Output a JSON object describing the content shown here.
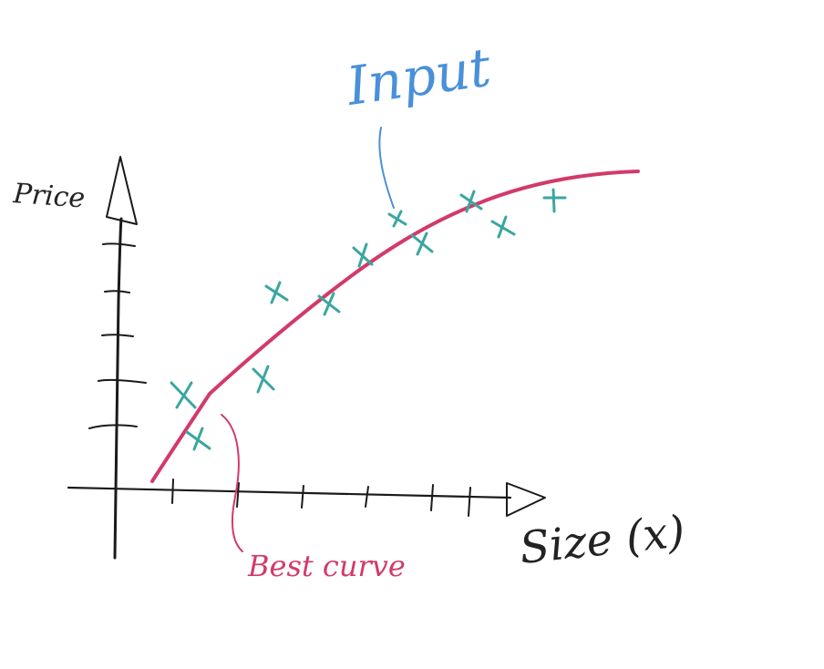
{
  "labels": {
    "y_axis": "Price",
    "x_axis": "Size (x)",
    "input_annotation": "Input",
    "curve_annotation": "Best curve"
  },
  "colors": {
    "ink": "#1a1a1a",
    "curve": "#d23a6a",
    "points": "#3aa6a0",
    "input_annotation": "#4a90d9"
  },
  "icons": {
    "x_axis_arrow": "open-triangle-arrow",
    "y_axis_arrow": "open-triangle-arrow",
    "data_point_marker": "cross-mark"
  }
}
